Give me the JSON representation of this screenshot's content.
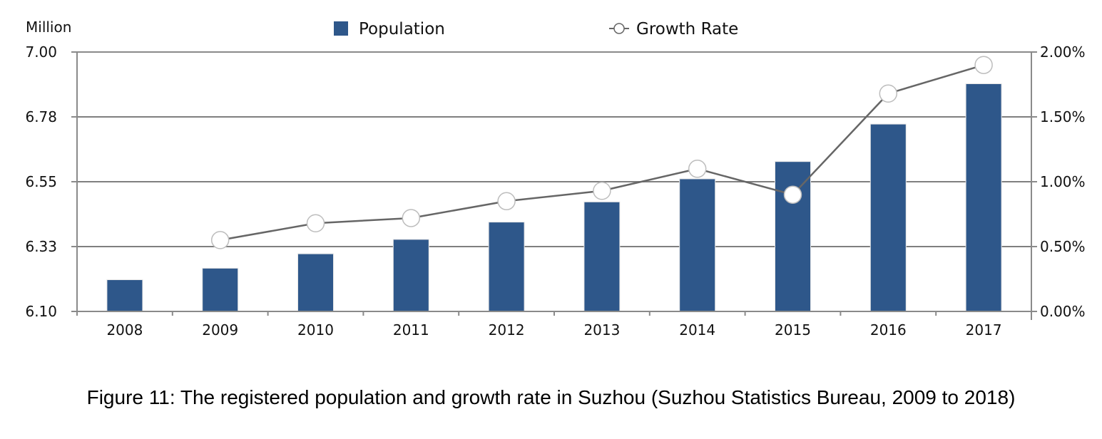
{
  "figure": {
    "caption": "Figure 11: The registered population and growth rate in Suzhou (Suzhou Statistics Bureau, 2009 to 2018)"
  },
  "chart_data": {
    "type": "bar",
    "title": "",
    "xlabel": "",
    "ylabel": "Million",
    "y2label": "",
    "categories": [
      "2008",
      "2009",
      "2010",
      "2011",
      "2012",
      "2013",
      "2014",
      "2015",
      "2016",
      "2017"
    ],
    "ylim": [
      6.1,
      7.0
    ],
    "y_ticks": [
      "7.00",
      "6.78",
      "6.55",
      "6.33",
      "6.10"
    ],
    "y2lim": [
      0,
      2.0
    ],
    "y2_ticks": [
      "2.00%",
      "1.50%",
      "1.00%",
      "0.50%",
      "0.00%"
    ],
    "legend_position": "top",
    "grid": true,
    "series": [
      {
        "name": "Population",
        "type": "bar",
        "axis": "left",
        "color": "#2e578a",
        "values": [
          6.21,
          6.25,
          6.3,
          6.35,
          6.41,
          6.48,
          6.56,
          6.62,
          6.75,
          6.89
        ]
      },
      {
        "name": "Growth Rate",
        "type": "line",
        "axis": "right",
        "color": "#666666",
        "marker": "hollow-circle",
        "unit": "%",
        "values": [
          null,
          0.55,
          0.68,
          0.72,
          0.85,
          0.93,
          1.1,
          0.9,
          1.68,
          1.9
        ]
      }
    ]
  }
}
